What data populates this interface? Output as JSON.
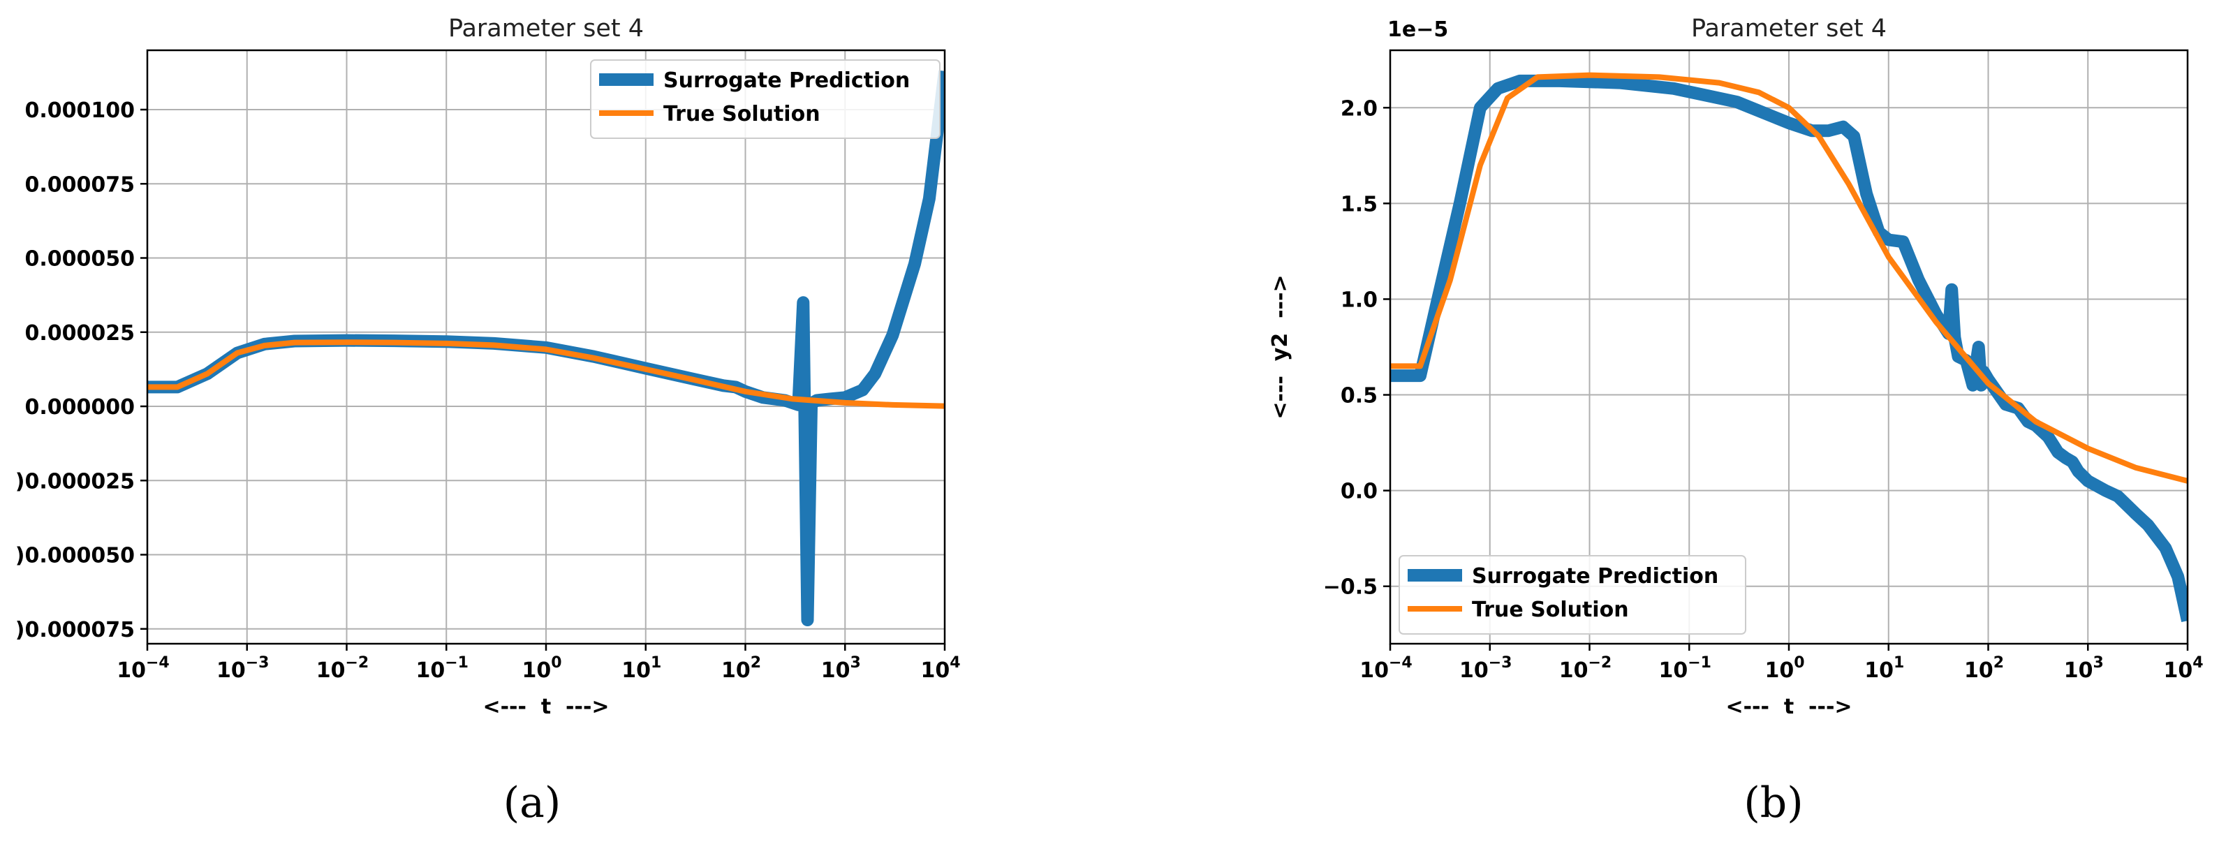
{
  "captions": [
    "(a)",
    "(b)"
  ],
  "colors": {
    "surrogate": "#1f77b4",
    "true": "#ff7f0e",
    "grid": "#b0b0b0"
  },
  "chart_data": [
    {
      "type": "line",
      "title": "Parameter set 4",
      "xlabel": "<---  t  --->",
      "ylabel": "",
      "xscale": "log",
      "xlim": [
        0.0001,
        10000
      ],
      "ylim": [
        -8e-05,
        0.00012
      ],
      "grid": true,
      "legend": "top-right",
      "x_ticks": [
        {
          "value": 0.0001,
          "base": "10",
          "exp": "−4"
        },
        {
          "value": 0.001,
          "base": "10",
          "exp": "−3"
        },
        {
          "value": 0.01,
          "base": "10",
          "exp": "−2"
        },
        {
          "value": 0.1,
          "base": "10",
          "exp": "−1"
        },
        {
          "value": 1,
          "base": "10",
          "exp": "0"
        },
        {
          "value": 10,
          "base": "10",
          "exp": "1"
        },
        {
          "value": 100,
          "base": "10",
          "exp": "2"
        },
        {
          "value": 1000,
          "base": "10",
          "exp": "3"
        },
        {
          "value": 10000,
          "base": "10",
          "exp": "4"
        }
      ],
      "y_ticks": [
        {
          "value": 0.0001,
          "label": "0.000100"
        },
        {
          "value": 7.5e-05,
          "label": "0.000075"
        },
        {
          "value": 5e-05,
          "label": "0.000050"
        },
        {
          "value": 2.5e-05,
          "label": "0.000025"
        },
        {
          "value": 0.0,
          "label": "0.000000"
        },
        {
          "value": -2.5e-05,
          "label": ")0.000025"
        },
        {
          "value": -5e-05,
          "label": ")0.000050"
        },
        {
          "value": -7.5e-05,
          "label": ")0.000075"
        }
      ],
      "series": [
        {
          "name": "Surrogate Prediction",
          "x": [
            0.0001,
            0.0002,
            0.0004,
            0.0008,
            0.0015,
            0.003,
            0.01,
            0.03,
            0.1,
            0.3,
            1,
            3,
            10,
            30,
            60,
            80,
            100,
            150,
            250,
            340,
            380,
            420,
            460,
            520,
            700,
            1000,
            1500,
            2000,
            3000,
            5000,
            7000,
            10000
          ],
          "y": [
            6.5e-06,
            6.5e-06,
            1.1e-05,
            1.8e-05,
            2.1e-05,
            2.2e-05,
            2.22e-05,
            2.21e-05,
            2.18e-05,
            2.12e-05,
            1.98e-05,
            1.68e-05,
            1.28e-05,
            9.2e-06,
            7e-06,
            6.5e-06,
            5e-06,
            3e-06,
            2e-06,
            5e-07,
            3.5e-05,
            -7.2e-05,
            1e-06,
            2e-06,
            2.5e-06,
            3e-06,
            5.5e-06,
            1.1e-05,
            2.4e-05,
            4.8e-05,
            7e-05,
            0.000113
          ]
        },
        {
          "name": "True Solution",
          "x": [
            0.0001,
            0.0002,
            0.0004,
            0.0008,
            0.0015,
            0.003,
            0.01,
            0.03,
            0.1,
            0.3,
            1,
            3,
            10,
            30,
            100,
            300,
            1000,
            3000,
            10000
          ],
          "y": [
            6.5e-06,
            6.5e-06,
            1.1e-05,
            1.8e-05,
            2.05e-05,
            2.15e-05,
            2.16e-05,
            2.15e-05,
            2.12e-05,
            2.06e-05,
            1.92e-05,
            1.63e-05,
            1.25e-05,
            9e-06,
            5e-06,
            2.5e-06,
            1.2e-06,
            5e-07,
            1e-07
          ]
        }
      ]
    },
    {
      "type": "line",
      "title": "Parameter set 4",
      "xlabel": "<---  t  --->",
      "ylabel": "<---  y2  --->",
      "offset_label": "1e−5",
      "xscale": "log",
      "xlim": [
        0.0001,
        10000
      ],
      "ylim": [
        -0.8,
        2.3
      ],
      "grid": true,
      "legend": "bottom-left",
      "x_ticks": [
        {
          "value": 0.0001,
          "base": "10",
          "exp": "−4"
        },
        {
          "value": 0.001,
          "base": "10",
          "exp": "−3"
        },
        {
          "value": 0.01,
          "base": "10",
          "exp": "−2"
        },
        {
          "value": 0.1,
          "base": "10",
          "exp": "−1"
        },
        {
          "value": 1,
          "base": "10",
          "exp": "0"
        },
        {
          "value": 10,
          "base": "10",
          "exp": "1"
        },
        {
          "value": 100,
          "base": "10",
          "exp": "2"
        },
        {
          "value": 1000,
          "base": "10",
          "exp": "3"
        },
        {
          "value": 10000,
          "base": "10",
          "exp": "4"
        }
      ],
      "y_ticks": [
        {
          "value": 2.0,
          "label": "2.0"
        },
        {
          "value": 1.5,
          "label": "1.5"
        },
        {
          "value": 1.0,
          "label": "1.0"
        },
        {
          "value": 0.5,
          "label": "0.5"
        },
        {
          "value": 0.0,
          "label": "0.0"
        },
        {
          "value": -0.5,
          "label": "−0.5"
        }
      ],
      "series": [
        {
          "name": "Surrogate Prediction",
          "x": [
            0.0001,
            0.0002,
            0.0003,
            0.0005,
            0.0008,
            0.0012,
            0.002,
            0.005,
            0.02,
            0.07,
            0.3,
            1,
            1.7,
            2.5,
            3.5,
            4.5,
            6,
            8,
            10,
            14,
            20,
            30,
            40,
            43,
            46,
            50,
            60,
            70,
            80,
            85,
            90,
            100,
            150,
            200,
            250,
            300,
            400,
            500,
            600,
            700,
            800,
            1000,
            1500,
            2000,
            3000,
            4000,
            6000,
            8000,
            10000
          ],
          "y": [
            0.6,
            0.6,
            1.0,
            1.5,
            2.0,
            2.1,
            2.14,
            2.14,
            2.13,
            2.1,
            2.03,
            1.92,
            1.88,
            1.88,
            1.9,
            1.85,
            1.55,
            1.35,
            1.31,
            1.3,
            1.1,
            0.92,
            0.82,
            1.05,
            0.8,
            0.7,
            0.68,
            0.55,
            0.75,
            0.55,
            0.62,
            0.58,
            0.45,
            0.43,
            0.36,
            0.34,
            0.28,
            0.2,
            0.17,
            0.15,
            0.1,
            0.05,
            0.0,
            -0.03,
            -0.12,
            -0.18,
            -0.3,
            -0.45,
            -0.68
          ]
        },
        {
          "name": "True Solution",
          "x": [
            0.0001,
            0.0002,
            0.0004,
            0.0008,
            0.0015,
            0.003,
            0.01,
            0.05,
            0.2,
            0.5,
            1,
            2,
            4,
            10,
            30,
            100,
            300,
            1000,
            3000,
            10000
          ],
          "y": [
            0.65,
            0.65,
            1.1,
            1.7,
            2.05,
            2.16,
            2.17,
            2.16,
            2.13,
            2.08,
            2.0,
            1.85,
            1.6,
            1.22,
            0.88,
            0.56,
            0.36,
            0.22,
            0.12,
            0.05
          ]
        }
      ]
    }
  ]
}
